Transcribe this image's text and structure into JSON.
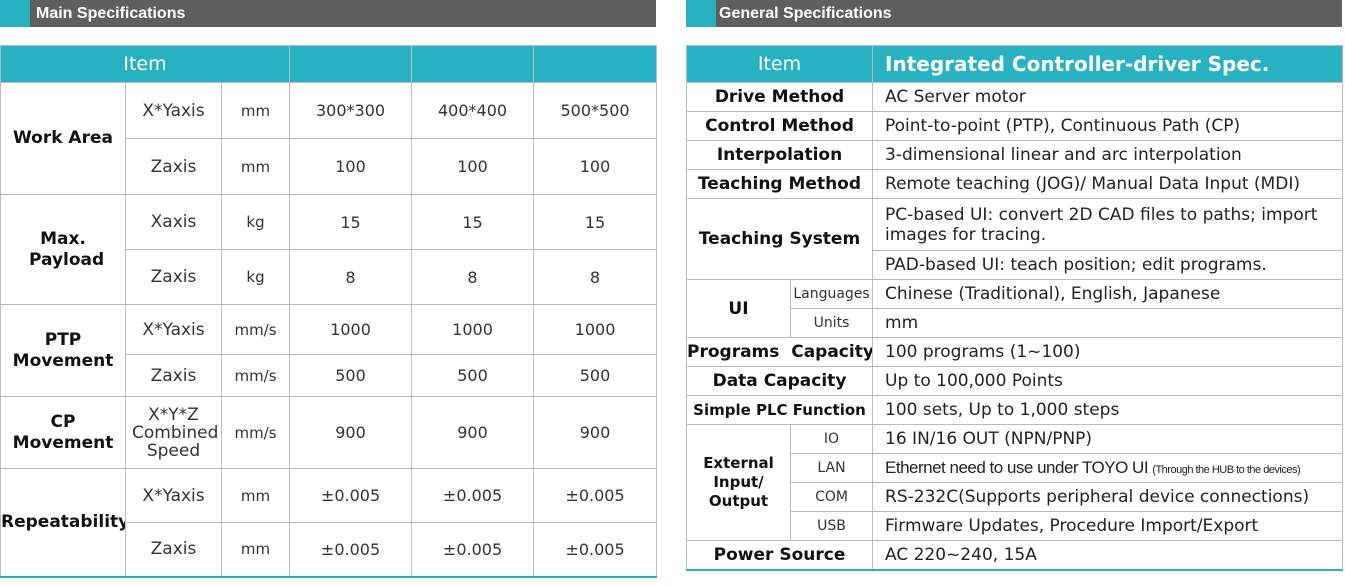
{
  "main": {
    "banner": "Main Specifications",
    "header_item": "Item",
    "models": [
      "",
      "",
      ""
    ],
    "groups": [
      {
        "label": "Work Area",
        "rows": [
          {
            "sub": "X*Yaxis",
            "unit": "mm",
            "values": [
              "300*300",
              "400*400",
              "500*500"
            ]
          },
          {
            "sub": "Zaxis",
            "unit": "mm",
            "values": [
              "100",
              "100",
              "100"
            ]
          }
        ]
      },
      {
        "label": "Max. Payload",
        "rows": [
          {
            "sub": "Xaxis",
            "unit": "kg",
            "values": [
              "15",
              "15",
              "15"
            ]
          },
          {
            "sub": "Zaxis",
            "unit": "kg",
            "values": [
              "8",
              "8",
              "8"
            ]
          }
        ]
      },
      {
        "label": "PTP Movement",
        "rows": [
          {
            "sub": "X*Yaxis",
            "unit": "mm/s",
            "values": [
              "1000",
              "1000",
              "1000"
            ]
          },
          {
            "sub": "Zaxis",
            "unit": "mm/s",
            "values": [
              "500",
              "500",
              "500"
            ]
          }
        ]
      },
      {
        "label": "CP Movement",
        "rows": [
          {
            "sub": "X*Y*Z Combined Speed",
            "unit": "mm/s",
            "values": [
              "900",
              "900",
              "900"
            ]
          }
        ]
      },
      {
        "label": "Repeatability",
        "rows": [
          {
            "sub": "X*Yaxis",
            "unit": "mm",
            "values": [
              "±0.005",
              "±0.005",
              "±0.005"
            ]
          },
          {
            "sub": "Zaxis",
            "unit": "mm",
            "values": [
              "±0.005",
              "±0.005",
              "±0.005"
            ]
          }
        ]
      }
    ]
  },
  "general": {
    "banner": "General Specifications",
    "header_item": "Item",
    "header_spec": "Integrated Controller-driver Spec.",
    "drive_method": {
      "label": "Drive Method",
      "value": "AC Server motor"
    },
    "control_method": {
      "label": "Control Method",
      "value": "Point-to-point (PTP), Continuous Path (CP)"
    },
    "interpolation": {
      "label": "Interpolation",
      "value": "3-dimensional linear and arc interpolation"
    },
    "teaching_method": {
      "label": "Teaching Method",
      "value": "Remote teaching (JOG)/ Manual Data Input (MDI)"
    },
    "teaching_system": {
      "label": "Teaching System",
      "values": [
        "PC-based UI: convert 2D CAD files to paths; import images for tracing.",
        "PAD-based UI: teach position; edit programs."
      ]
    },
    "ui": {
      "label": "UI",
      "rows": [
        {
          "sub": "Languages",
          "value": "Chinese (Traditional), English, Japanese"
        },
        {
          "sub": "Units",
          "value": "mm"
        }
      ]
    },
    "programs_capacity": {
      "label": "Programs  Capacity",
      "value": "100 programs (1~100)"
    },
    "data_capacity": {
      "label": "Data Capacity",
      "value": "Up to 100,000 Points"
    },
    "simple_plc": {
      "label": "Simple PLC Function",
      "value": "100 sets, Up to 1,000 steps"
    },
    "external_io": {
      "label": "External Input/ Output",
      "rows": [
        {
          "sub": "IO",
          "value": "16 IN/16 OUT (NPN/PNP)",
          "note": ""
        },
        {
          "sub": "LAN",
          "value": "Ethernet need to use under TOYO UI",
          "note": "(Through the HUB to the devices)"
        },
        {
          "sub": "COM",
          "value": "RS-232C(Supports peripheral device connections)",
          "note": ""
        },
        {
          "sub": "USB",
          "value": "Firmware Updates, Procedure Import/Export",
          "note": ""
        }
      ]
    },
    "power_source": {
      "label": "Power Source",
      "value": "AC 220~240, 15A"
    }
  }
}
